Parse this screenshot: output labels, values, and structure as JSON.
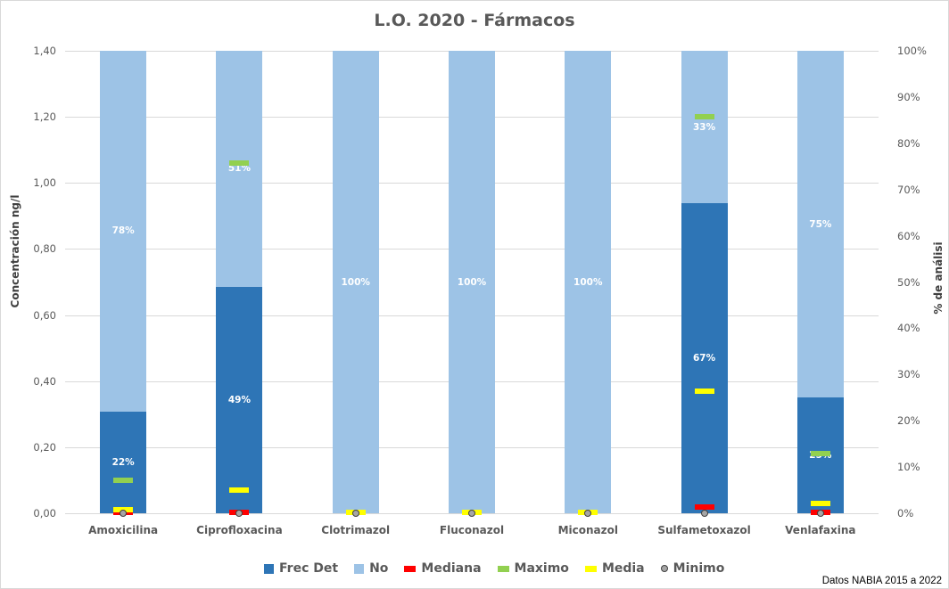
{
  "title": "L.O. 2020 - Fármacos",
  "source_note": "Datos NABIA 2015 a 2022",
  "axes": {
    "left_label": "Concentración ng/l",
    "right_label": "% de análisi",
    "left_ticks": [
      "0,00",
      "0,20",
      "0,40",
      "0,60",
      "0,80",
      "1,00",
      "1,20",
      "1,40"
    ],
    "right_ticks": [
      "0%",
      "10%",
      "20%",
      "30%",
      "40%",
      "50%",
      "60%",
      "70%",
      "80%",
      "90%",
      "100%"
    ]
  },
  "legend": [
    {
      "label": "Frec Det",
      "color": "#2e75b6",
      "kind": "box"
    },
    {
      "label": "No",
      "color": "#9dc3e6",
      "kind": "box"
    },
    {
      "label": "Mediana",
      "color": "#ff0000",
      "kind": "dash"
    },
    {
      "label": "Maximo",
      "color": "#92d050",
      "kind": "dash"
    },
    {
      "label": "Media",
      "color": "#ffff00",
      "kind": "dash"
    },
    {
      "label": "Minimo",
      "color": "#a6a6a6",
      "kind": "dot"
    }
  ],
  "categories": [
    {
      "name": "Amoxicilina",
      "det_label": "22%",
      "no_label": "78%"
    },
    {
      "name": "Ciprofloxacina",
      "det_label": "49%",
      "no_label": "51%"
    },
    {
      "name": "Clotrimazol",
      "det_label": "",
      "no_label": "100%"
    },
    {
      "name": "Fluconazol",
      "det_label": "",
      "no_label": "100%"
    },
    {
      "name": "Miconazol",
      "det_label": "",
      "no_label": "100%"
    },
    {
      "name": "Sulfametoxazol",
      "det_label": "67%",
      "no_label": "33%"
    },
    {
      "name": "Venlafaxina",
      "det_label": "25%",
      "no_label": "75%"
    }
  ],
  "chart_data": {
    "type": "bar",
    "subtype": "stacked percent bar (secondary axis) with concentration markers (primary axis)",
    "title": "L.O. 2020 - Fármacos",
    "xlabel": "",
    "ylabel": "Concentración ng/l",
    "ylabel_secondary": "% de análisi",
    "ylim": [
      0,
      1.4
    ],
    "ylim_secondary": [
      0,
      100
    ],
    "grid": true,
    "legend_position": "bottom",
    "categories": [
      "Amoxicilina",
      "Ciprofloxacina",
      "Clotrimazol",
      "Fluconazol",
      "Miconazol",
      "Sulfametoxazol",
      "Venlafaxina"
    ],
    "series": [
      {
        "name": "Frec Det",
        "axis": "secondary",
        "unit": "%",
        "type": "stacked-bar",
        "color": "#2e75b6",
        "values": [
          22,
          49,
          0,
          0,
          0,
          67,
          25
        ]
      },
      {
        "name": "No",
        "axis": "secondary",
        "unit": "%",
        "type": "stacked-bar",
        "color": "#9dc3e6",
        "values": [
          78,
          51,
          100,
          100,
          100,
          33,
          75
        ]
      },
      {
        "name": "Mediana",
        "axis": "primary",
        "unit": "ng/l",
        "type": "marker",
        "color": "#ff0000",
        "values": [
          0.0,
          0.0,
          0.0,
          0.0,
          0.0,
          0.02,
          0.0
        ]
      },
      {
        "name": "Maximo",
        "axis": "primary",
        "unit": "ng/l",
        "type": "marker",
        "color": "#92d050",
        "values": [
          0.1,
          1.06,
          0.0,
          0.0,
          0.0,
          1.2,
          0.18
        ]
      },
      {
        "name": "Media",
        "axis": "primary",
        "unit": "ng/l",
        "type": "marker",
        "color": "#ffff00",
        "values": [
          0.01,
          0.07,
          0.0,
          0.0,
          0.0,
          0.37,
          0.03
        ]
      },
      {
        "name": "Minimo",
        "axis": "primary",
        "unit": "ng/l",
        "type": "marker",
        "color": "#a6a6a6",
        "values": [
          0.0,
          0.0,
          0.0,
          0.0,
          0.0,
          0.0,
          0.0
        ]
      }
    ]
  }
}
